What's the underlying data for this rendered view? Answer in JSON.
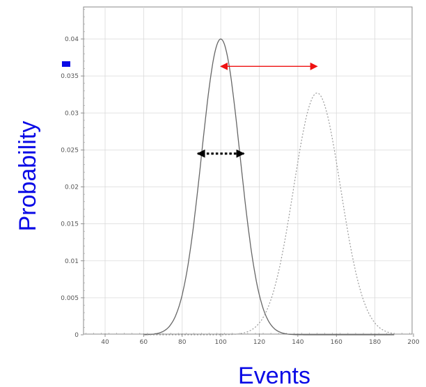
{
  "chart_data": {
    "type": "line",
    "xlabel": "Events",
    "ylabel": "Probability",
    "xlim": [
      30,
      200
    ],
    "ylim": [
      0,
      0.045
    ],
    "x_ticks": [
      40,
      60,
      80,
      100,
      120,
      140,
      160,
      180,
      200
    ],
    "y_ticks": [
      0,
      0.005,
      0.01,
      0.015,
      0.02,
      0.025,
      0.03,
      0.035,
      0.04
    ],
    "y_tick_labels": [
      "0",
      "0.005",
      "0.01",
      "0.015",
      "0.02",
      "0.025",
      "0.03",
      "0.035",
      "0.04"
    ],
    "grid": true,
    "series": [
      {
        "style": "solid",
        "color": "#666666",
        "mean": 100,
        "sigma": 10,
        "peak": 0.04
      },
      {
        "style": "dotted",
        "color": "#999999",
        "mean": 150,
        "sigma": 12.2,
        "peak": 0.0327
      }
    ],
    "annotations": [
      {
        "kind": "double-arrow",
        "style": "solid",
        "color": "#ee1111",
        "x": [
          100,
          150
        ],
        "y": 0.0363
      },
      {
        "kind": "double-arrow",
        "style": "dotted",
        "color": "#000000",
        "x": [
          88,
          112
        ],
        "y": 0.0245
      }
    ],
    "colors": {
      "axis_title": "#0a0ae6",
      "grid": "#d9d9d9",
      "frame": "#888888"
    }
  }
}
